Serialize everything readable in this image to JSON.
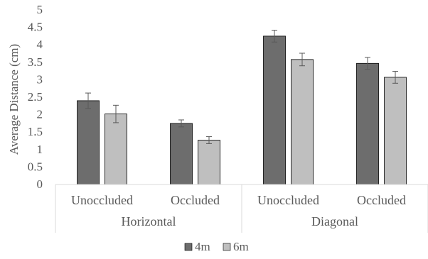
{
  "chart_data": {
    "type": "bar",
    "ylabel": "Average Distance (cm)",
    "ylim": [
      0,
      5
    ],
    "yticks": [
      "0",
      "0.5",
      "1",
      "1.5",
      "2",
      "2.5",
      "3",
      "3.5",
      "4",
      "4.5",
      "5"
    ],
    "groups": [
      {
        "label": "Horizontal",
        "categories": [
          "Unoccluded",
          "Occluded"
        ]
      },
      {
        "label": "Diagonal",
        "categories": [
          "Unoccluded",
          "Occluded"
        ]
      }
    ],
    "series": [
      {
        "name": "4m",
        "color": "#6d6d6d",
        "values": [
          2.4,
          1.75,
          4.25,
          3.47
        ],
        "errors": [
          0.22,
          0.1,
          0.17,
          0.17
        ]
      },
      {
        "name": "6m",
        "color": "#bfbfbf",
        "values": [
          2.02,
          1.27,
          3.58,
          3.07
        ],
        "errors": [
          0.25,
          0.1,
          0.18,
          0.17
        ]
      }
    ],
    "grid": false,
    "legend": "bottom-center"
  }
}
